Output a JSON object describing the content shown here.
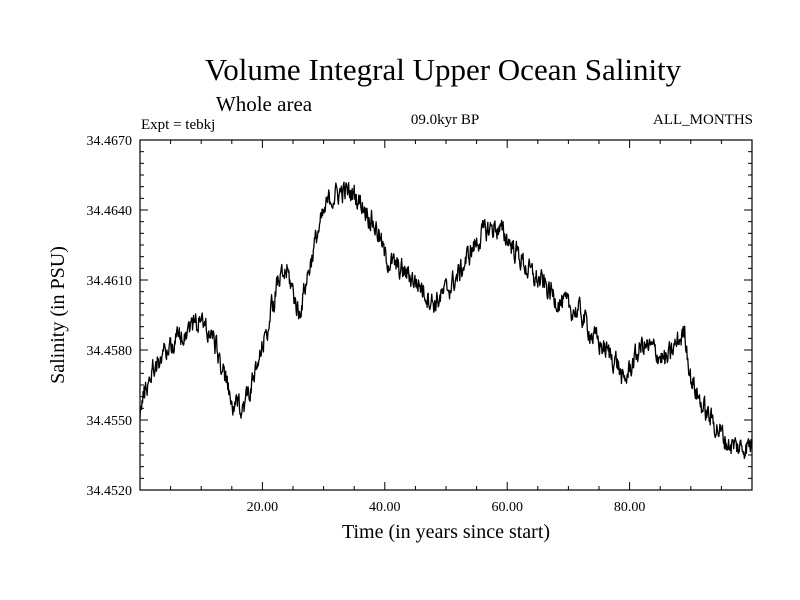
{
  "chart_data": {
    "type": "line",
    "title": "Volume Integral Upper Ocean Salinity",
    "subtitle": "Whole area",
    "annotations": {
      "left": "Expt = tebkj",
      "center": "09.0kyr BP",
      "right": "ALL_MONTHS"
    },
    "xlabel": "Time (in years since start)",
    "ylabel": "Salinity (in PSU)",
    "xlim": [
      0.0,
      100.0
    ],
    "ylim": [
      34.452,
      34.467
    ],
    "xticks": [
      20,
      40,
      60,
      80
    ],
    "xtick_labels": [
      "20.00",
      "40.00",
      "60.00",
      "80.00"
    ],
    "yticks": [
      34.452,
      34.455,
      34.458,
      34.461,
      34.464,
      34.467
    ],
    "ytick_labels": [
      "34.4520",
      "34.4550",
      "34.4580",
      "34.4610",
      "34.4640",
      "34.4670"
    ],
    "series": [
      {
        "name": "Salinity",
        "color": "#000000",
        "trend": {
          "x": [
            0,
            2,
            5,
            8,
            10,
            12,
            14,
            15,
            17,
            19,
            21,
            22.5,
            24,
            25,
            26,
            27,
            29,
            31,
            33,
            35,
            37,
            39,
            40,
            42,
            44,
            46,
            48,
            50,
            52,
            54,
            56,
            58,
            60,
            62,
            64,
            66,
            68,
            70,
            72,
            74,
            76,
            78,
            79,
            80,
            82,
            84,
            86,
            88,
            89,
            90,
            92,
            94,
            96,
            98,
            100
          ],
          "y": [
            34.4555,
            34.4572,
            34.4582,
            34.459,
            34.4593,
            34.4585,
            34.4567,
            34.4555,
            34.4557,
            34.457,
            34.4592,
            34.4608,
            34.4614,
            34.4605,
            34.4595,
            34.4608,
            34.463,
            34.4645,
            34.4648,
            34.4647,
            34.464,
            34.463,
            34.462,
            34.4615,
            34.4612,
            34.4607,
            34.46,
            34.4605,
            34.4612,
            34.4622,
            34.463,
            34.4633,
            34.4628,
            34.462,
            34.4612,
            34.4608,
            34.4602,
            34.4598,
            34.4596,
            34.4586,
            34.458,
            34.4575,
            34.4565,
            34.4572,
            34.4582,
            34.458,
            34.4575,
            34.4584,
            34.4588,
            34.4568,
            34.4555,
            34.4548,
            34.454,
            34.4538,
            34.454
          ]
        },
        "samples_per_year": 12,
        "noise_amplitude_psu": 0.00045
      }
    ]
  }
}
